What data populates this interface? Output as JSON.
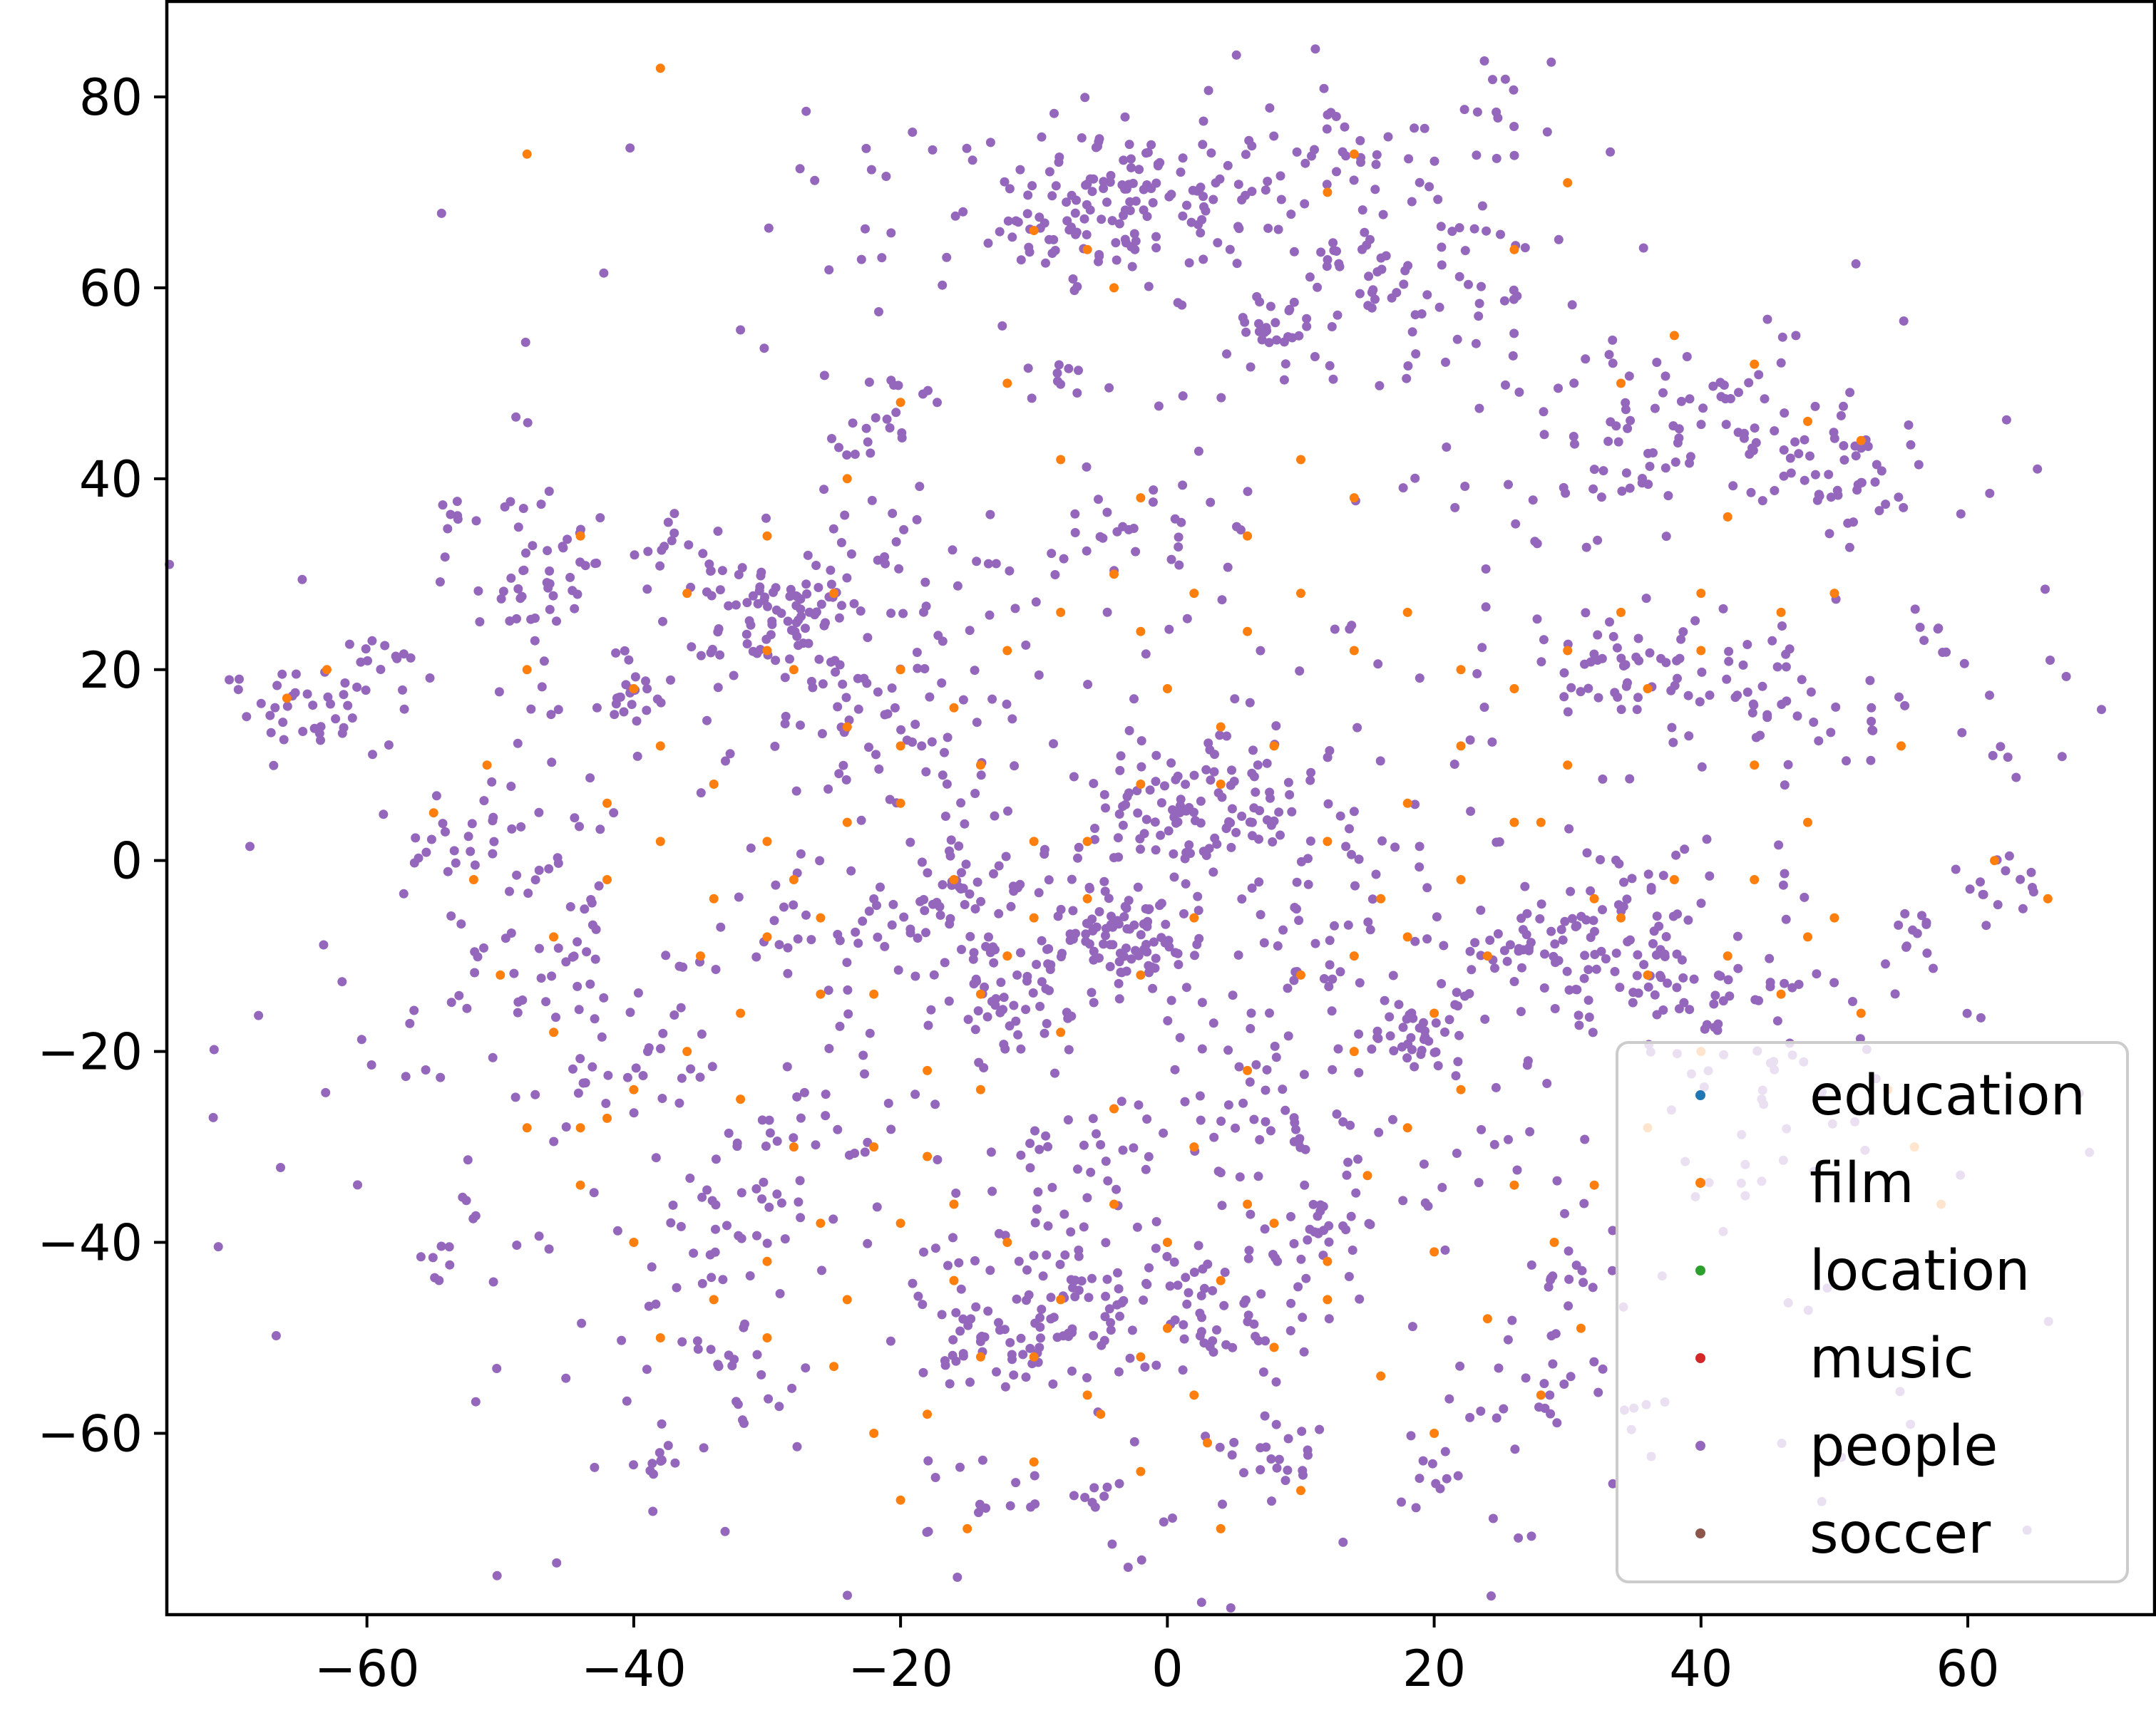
{
  "chart_data": {
    "type": "scatter",
    "title": "",
    "xlabel": "",
    "ylabel": "",
    "xlim": [
      -75,
      74
    ],
    "ylim": [
      -79,
      90
    ],
    "x_ticks": [
      -60,
      -40,
      -20,
      0,
      20,
      40,
      60
    ],
    "y_ticks": [
      80,
      60,
      40,
      20,
      0,
      -20,
      -40,
      -60
    ],
    "x_tick_labels": [
      "−60",
      "−40",
      "−20",
      "0",
      "20",
      "40",
      "60"
    ],
    "y_tick_labels": [
      "80",
      "60",
      "40",
      "20",
      "0",
      "−20",
      "−40",
      "−60"
    ],
    "grid": false,
    "legend_position": "lower-right",
    "series": [
      {
        "name": "education",
        "color": "#1f77b4",
        "points": []
      },
      {
        "name": "film",
        "color": "#ff7f0e",
        "points": [
          [
            -38,
            83
          ],
          [
            -48,
            74
          ],
          [
            -66,
            17
          ],
          [
            -63,
            20
          ],
          [
            -51,
            10
          ],
          [
            -55,
            5
          ],
          [
            -46,
            -18
          ],
          [
            -42,
            -27
          ],
          [
            -35,
            -10
          ],
          [
            -32,
            -25
          ],
          [
            -30,
            -50
          ],
          [
            -25,
            -53
          ],
          [
            -22,
            -60
          ],
          [
            -20,
            -67
          ],
          [
            -15,
            -70
          ],
          [
            -10,
            -63
          ],
          [
            -5,
            -58
          ],
          [
            0,
            -49
          ],
          [
            3,
            -61
          ],
          [
            8,
            -51
          ],
          [
            12,
            -42
          ],
          [
            15,
            -33
          ],
          [
            18,
            -28
          ],
          [
            22,
            -24
          ],
          [
            26,
            -34
          ],
          [
            29,
            -40
          ],
          [
            31,
            -49
          ],
          [
            28,
            -56
          ],
          [
            24,
            -48
          ],
          [
            20,
            -41
          ],
          [
            -18,
            -31
          ],
          [
            -14,
            -24
          ],
          [
            -22,
            -14
          ],
          [
            -26,
            -6
          ],
          [
            -30,
            2
          ],
          [
            -34,
            8
          ],
          [
            -38,
            12
          ],
          [
            -42,
            6
          ],
          [
            -30,
            22
          ],
          [
            -25,
            28
          ],
          [
            -20,
            20
          ],
          [
            -14,
            10
          ],
          [
            -10,
            2
          ],
          [
            -6,
            -4
          ],
          [
            -2,
            -12
          ],
          [
            2,
            -6
          ],
          [
            4,
            8
          ],
          [
            8,
            12
          ],
          [
            12,
            2
          ],
          [
            16,
            -4
          ],
          [
            18,
            6
          ],
          [
            22,
            12
          ],
          [
            26,
            18
          ],
          [
            30,
            22
          ],
          [
            34,
            26
          ],
          [
            36,
            18
          ],
          [
            40,
            22
          ],
          [
            44,
            10
          ],
          [
            48,
            4
          ],
          [
            50,
            -6
          ],
          [
            46,
            -14
          ],
          [
            40,
            -20
          ],
          [
            36,
            -12
          ],
          [
            32,
            -4
          ],
          [
            28,
            4
          ],
          [
            24,
            -10
          ],
          [
            20,
            -16
          ],
          [
            14,
            -20
          ],
          [
            10,
            -12
          ],
          [
            6,
            -22
          ],
          [
            2,
            -30
          ],
          [
            -4,
            -26
          ],
          [
            -8,
            -18
          ],
          [
            -12,
            -10
          ],
          [
            -16,
            -2
          ],
          [
            -20,
            6
          ],
          [
            -24,
            14
          ],
          [
            -28,
            20
          ],
          [
            6,
            34
          ],
          [
            10,
            42
          ],
          [
            14,
            38
          ],
          [
            -6,
            64
          ],
          [
            -4,
            60
          ],
          [
            -10,
            66
          ],
          [
            12,
            70
          ],
          [
            14,
            74
          ],
          [
            26,
            64
          ],
          [
            30,
            71
          ],
          [
            34,
            50
          ],
          [
            38,
            55
          ],
          [
            44,
            52
          ],
          [
            48,
            46
          ],
          [
            52,
            44
          ],
          [
            42,
            36
          ],
          [
            -12,
            50
          ],
          [
            -8,
            42
          ],
          [
            -2,
            38
          ],
          [
            -20,
            48
          ],
          [
            -24,
            40
          ],
          [
            -30,
            34
          ],
          [
            -36,
            28
          ],
          [
            -40,
            18
          ],
          [
            -44,
            34
          ],
          [
            -48,
            20
          ],
          [
            0,
            18
          ],
          [
            4,
            14
          ],
          [
            -2,
            8
          ],
          [
            -6,
            2
          ],
          [
            -10,
            -6
          ],
          [
            -14,
            -14
          ],
          [
            -18,
            -22
          ],
          [
            -22,
            -30
          ],
          [
            -26,
            -38
          ],
          [
            -30,
            -42
          ],
          [
            -34,
            -46
          ],
          [
            -38,
            -50
          ],
          [
            -40,
            -40
          ],
          [
            -44,
            -34
          ],
          [
            -48,
            -28
          ],
          [
            -50,
            -12
          ],
          [
            -52,
            -2
          ],
          [
            8,
            -38
          ],
          [
            12,
            -46
          ],
          [
            16,
            -54
          ],
          [
            20,
            -60
          ],
          [
            10,
            -66
          ],
          [
            4,
            -70
          ],
          [
            -2,
            -64
          ],
          [
            -8,
            -46
          ],
          [
            -12,
            -40
          ],
          [
            -16,
            -36
          ],
          [
            44,
            -2
          ],
          [
            48,
            -8
          ],
          [
            52,
            -16
          ],
          [
            54,
            -24
          ],
          [
            56,
            -30
          ],
          [
            58,
            -36
          ],
          [
            36,
            -28
          ],
          [
            32,
            -34
          ],
          [
            62,
            0
          ],
          [
            66,
            -4
          ],
          [
            55,
            12
          ],
          [
            50,
            28
          ],
          [
            46,
            26
          ],
          [
            40,
            28
          ],
          [
            0,
            -40
          ],
          [
            -4,
            -36
          ],
          [
            4,
            -44
          ],
          [
            6,
            -36
          ],
          [
            -2,
            -52
          ],
          [
            2,
            -56
          ],
          [
            -6,
            -56
          ],
          [
            -10,
            -52
          ],
          [
            14,
            -10
          ],
          [
            18,
            -8
          ],
          [
            22,
            -2
          ],
          [
            26,
            4
          ],
          [
            30,
            10
          ],
          [
            34,
            -6
          ],
          [
            38,
            -2
          ],
          [
            42,
            -10
          ],
          [
            -32,
            -16
          ],
          [
            -36,
            -20
          ],
          [
            -40,
            -24
          ],
          [
            -44,
            -28
          ],
          [
            -46,
            -8
          ],
          [
            -42,
            -2
          ],
          [
            -38,
            2
          ],
          [
            -34,
            -4
          ],
          [
            -30,
            -8
          ],
          [
            -26,
            -14
          ],
          [
            -20,
            -38
          ],
          [
            -16,
            -44
          ],
          [
            -14,
            -52
          ],
          [
            -18,
            -58
          ],
          [
            -24,
            -46
          ],
          [
            -28,
            -30
          ],
          [
            -2,
            24
          ],
          [
            2,
            28
          ],
          [
            6,
            24
          ],
          [
            10,
            28
          ],
          [
            14,
            22
          ],
          [
            18,
            26
          ],
          [
            22,
            20
          ],
          [
            -4,
            30
          ],
          [
            -8,
            26
          ],
          [
            -12,
            22
          ],
          [
            -16,
            16
          ],
          [
            -20,
            12
          ],
          [
            -24,
            4
          ],
          [
            -28,
            -2
          ]
        ]
      },
      {
        "name": "location",
        "color": "#2ca02c",
        "points": []
      },
      {
        "name": "music",
        "color": "#d62728",
        "points": []
      },
      {
        "name": "people",
        "color": "#9467bd",
        "clusters": [
          [
            0,
            -15,
            40,
            36,
            560
          ],
          [
            -3,
            -8,
            3,
            3,
            90
          ],
          [
            3,
            5,
            5,
            4,
            110
          ],
          [
            -15,
            -3,
            3,
            4,
            50
          ],
          [
            -12,
            -15,
            3,
            3,
            50
          ],
          [
            19,
            -18,
            2,
            2,
            40
          ],
          [
            -9,
            -45,
            4,
            4,
            60
          ],
          [
            3,
            -47,
            5,
            3,
            60
          ],
          [
            12,
            -38,
            2,
            2,
            25
          ],
          [
            -12,
            -50,
            3,
            2,
            40
          ],
          [
            0,
            68,
            12,
            6,
            140
          ],
          [
            20,
            62,
            6,
            8,
            70
          ],
          [
            -6,
            67,
            3,
            3,
            40
          ],
          [
            -2,
            71,
            2,
            2,
            30
          ],
          [
            8,
            55,
            2,
            2,
            25
          ],
          [
            41,
            45,
            9,
            5,
            110
          ],
          [
            51,
            39,
            3,
            3,
            25
          ],
          [
            -30,
            25,
            3,
            3,
            50
          ],
          [
            -28,
            27,
            3,
            2,
            25
          ],
          [
            -39,
            17,
            2,
            1,
            20
          ],
          [
            -47,
            28,
            2,
            6,
            40
          ],
          [
            -64,
            16,
            3,
            3,
            40
          ],
          [
            -51,
            2,
            4,
            4,
            40
          ],
          [
            -20,
            15,
            5,
            5,
            40
          ],
          [
            -20,
            30,
            6,
            5,
            40
          ],
          [
            40,
            -14,
            5,
            3,
            50
          ],
          [
            45,
            17,
            5,
            4,
            50
          ],
          [
            34,
            20,
            4,
            3,
            40
          ],
          [
            36,
            -5,
            4,
            4,
            40
          ],
          [
            30,
            -10,
            3,
            3,
            25
          ],
          [
            -38,
            -63,
            1,
            1,
            10
          ],
          [
            63,
            -3,
            2,
            2,
            15
          ],
          [
            56,
            -8,
            1,
            2,
            10
          ],
          [
            -54,
            36,
            1,
            1,
            6
          ],
          [
            -58,
            22,
            2,
            2,
            10
          ],
          [
            -46,
            -10,
            3,
            3,
            20
          ],
          [
            -54,
            -40,
            2,
            2,
            10
          ],
          [
            -32,
            -54,
            3,
            3,
            20
          ],
          [
            -8,
            -66,
            4,
            3,
            20
          ],
          [
            8,
            -62,
            3,
            2,
            18
          ],
          [
            20,
            -64,
            2,
            2,
            10
          ],
          [
            32,
            -44,
            3,
            3,
            15
          ],
          [
            26,
            -6,
            4,
            4,
            30
          ],
          [
            10,
            -10,
            3,
            3,
            20
          ],
          [
            -38,
            33,
            3,
            2,
            20
          ],
          [
            -22,
            46,
            3,
            3,
            20
          ],
          [
            -40,
            -20,
            4,
            4,
            30
          ],
          [
            -34,
            -38,
            4,
            4,
            30
          ],
          [
            46,
            -25,
            3,
            3,
            20
          ],
          [
            -2,
            36,
            3,
            3,
            20
          ],
          [
            8,
            -28,
            4,
            4,
            30
          ],
          [
            -28,
            -28,
            3,
            3,
            20
          ],
          [
            26,
            -55,
            3,
            3,
            15
          ],
          [
            -25,
            -8,
            4,
            4,
            30
          ],
          [
            -5,
            -30,
            3,
            3,
            20
          ],
          [
            -8,
            50,
            2,
            1,
            10
          ],
          [
            25,
            79,
            2,
            2,
            10
          ],
          [
            13,
            75,
            2,
            2,
            10
          ],
          [
            36,
            -58,
            2,
            2,
            6
          ],
          [
            58,
            23,
            1,
            1,
            6
          ],
          [
            62,
            10,
            1,
            1,
            4
          ],
          [
            -40,
            75,
            0.4,
            0.4,
            1
          ],
          [
            -54,
            68,
            0.4,
            0.4,
            1
          ]
        ]
      },
      {
        "name": "soccer",
        "color": "#8c564b",
        "points": []
      }
    ]
  }
}
